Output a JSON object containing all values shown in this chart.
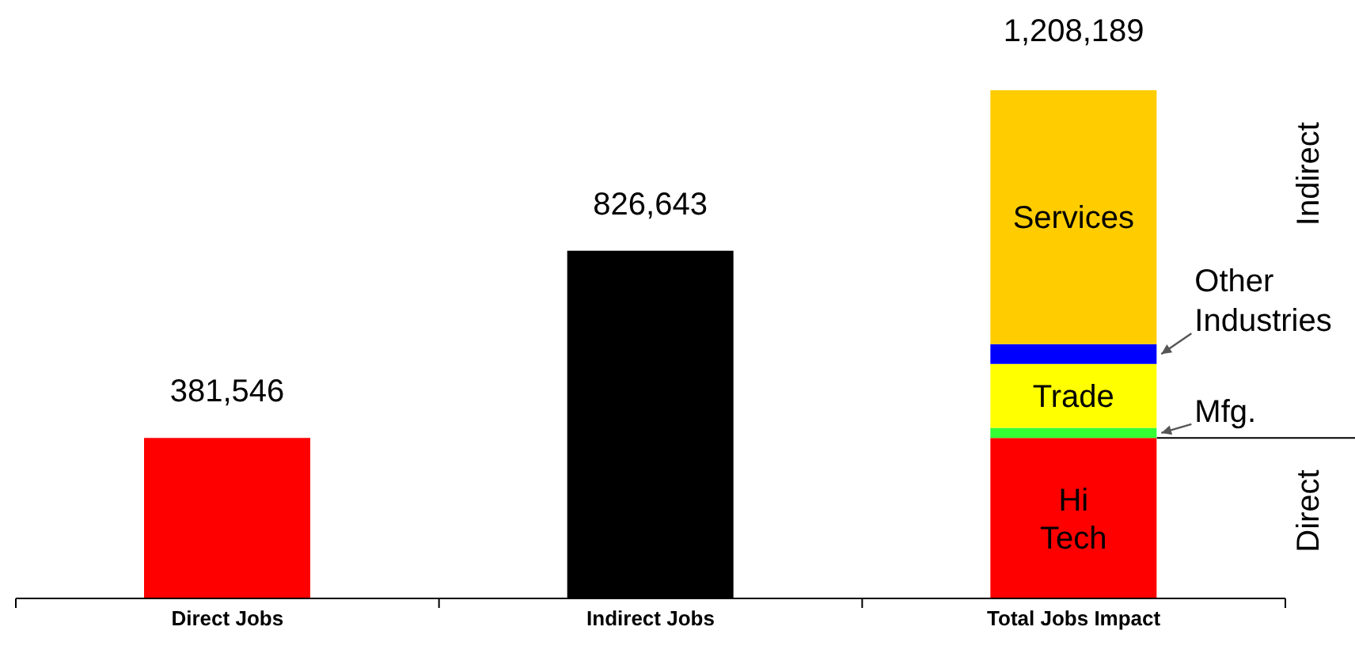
{
  "chart_data": {
    "type": "bar",
    "stacked": true,
    "categories": [
      "Direct Jobs",
      "Indirect Jobs",
      "Total Jobs Impact"
    ],
    "series": [
      {
        "color": "#ff0000",
        "values": [
          381546,
          null,
          null
        ],
        "value_labels": [
          "381,546",
          null,
          null
        ]
      },
      {
        "color": "#000000",
        "values": [
          null,
          826643,
          null
        ],
        "value_labels": [
          null,
          "826,643",
          null
        ]
      },
      {
        "name": "Hi Tech",
        "color": "#ff0000",
        "values": [
          null,
          null,
          381546
        ]
      },
      {
        "name": "Mfg.",
        "color": "#33ff33",
        "values": [
          null,
          null,
          24000
        ]
      },
      {
        "name": "Trade",
        "color": "#ffff00",
        "values": [
          null,
          null,
          152000
        ]
      },
      {
        "name": "Other Industries",
        "color": "#0000ff",
        "values": [
          null,
          null,
          47000
        ]
      },
      {
        "name": "Services",
        "color": "#ffcc00",
        "values": [
          null,
          null,
          603643
        ]
      }
    ],
    "totals": [
      null,
      null,
      "1,208,189"
    ],
    "ref_lines": [
      {
        "axis": "y",
        "value": 381546
      }
    ],
    "annotations": [
      "Indirect",
      "Direct"
    ],
    "legend": false,
    "grid": false
  }
}
